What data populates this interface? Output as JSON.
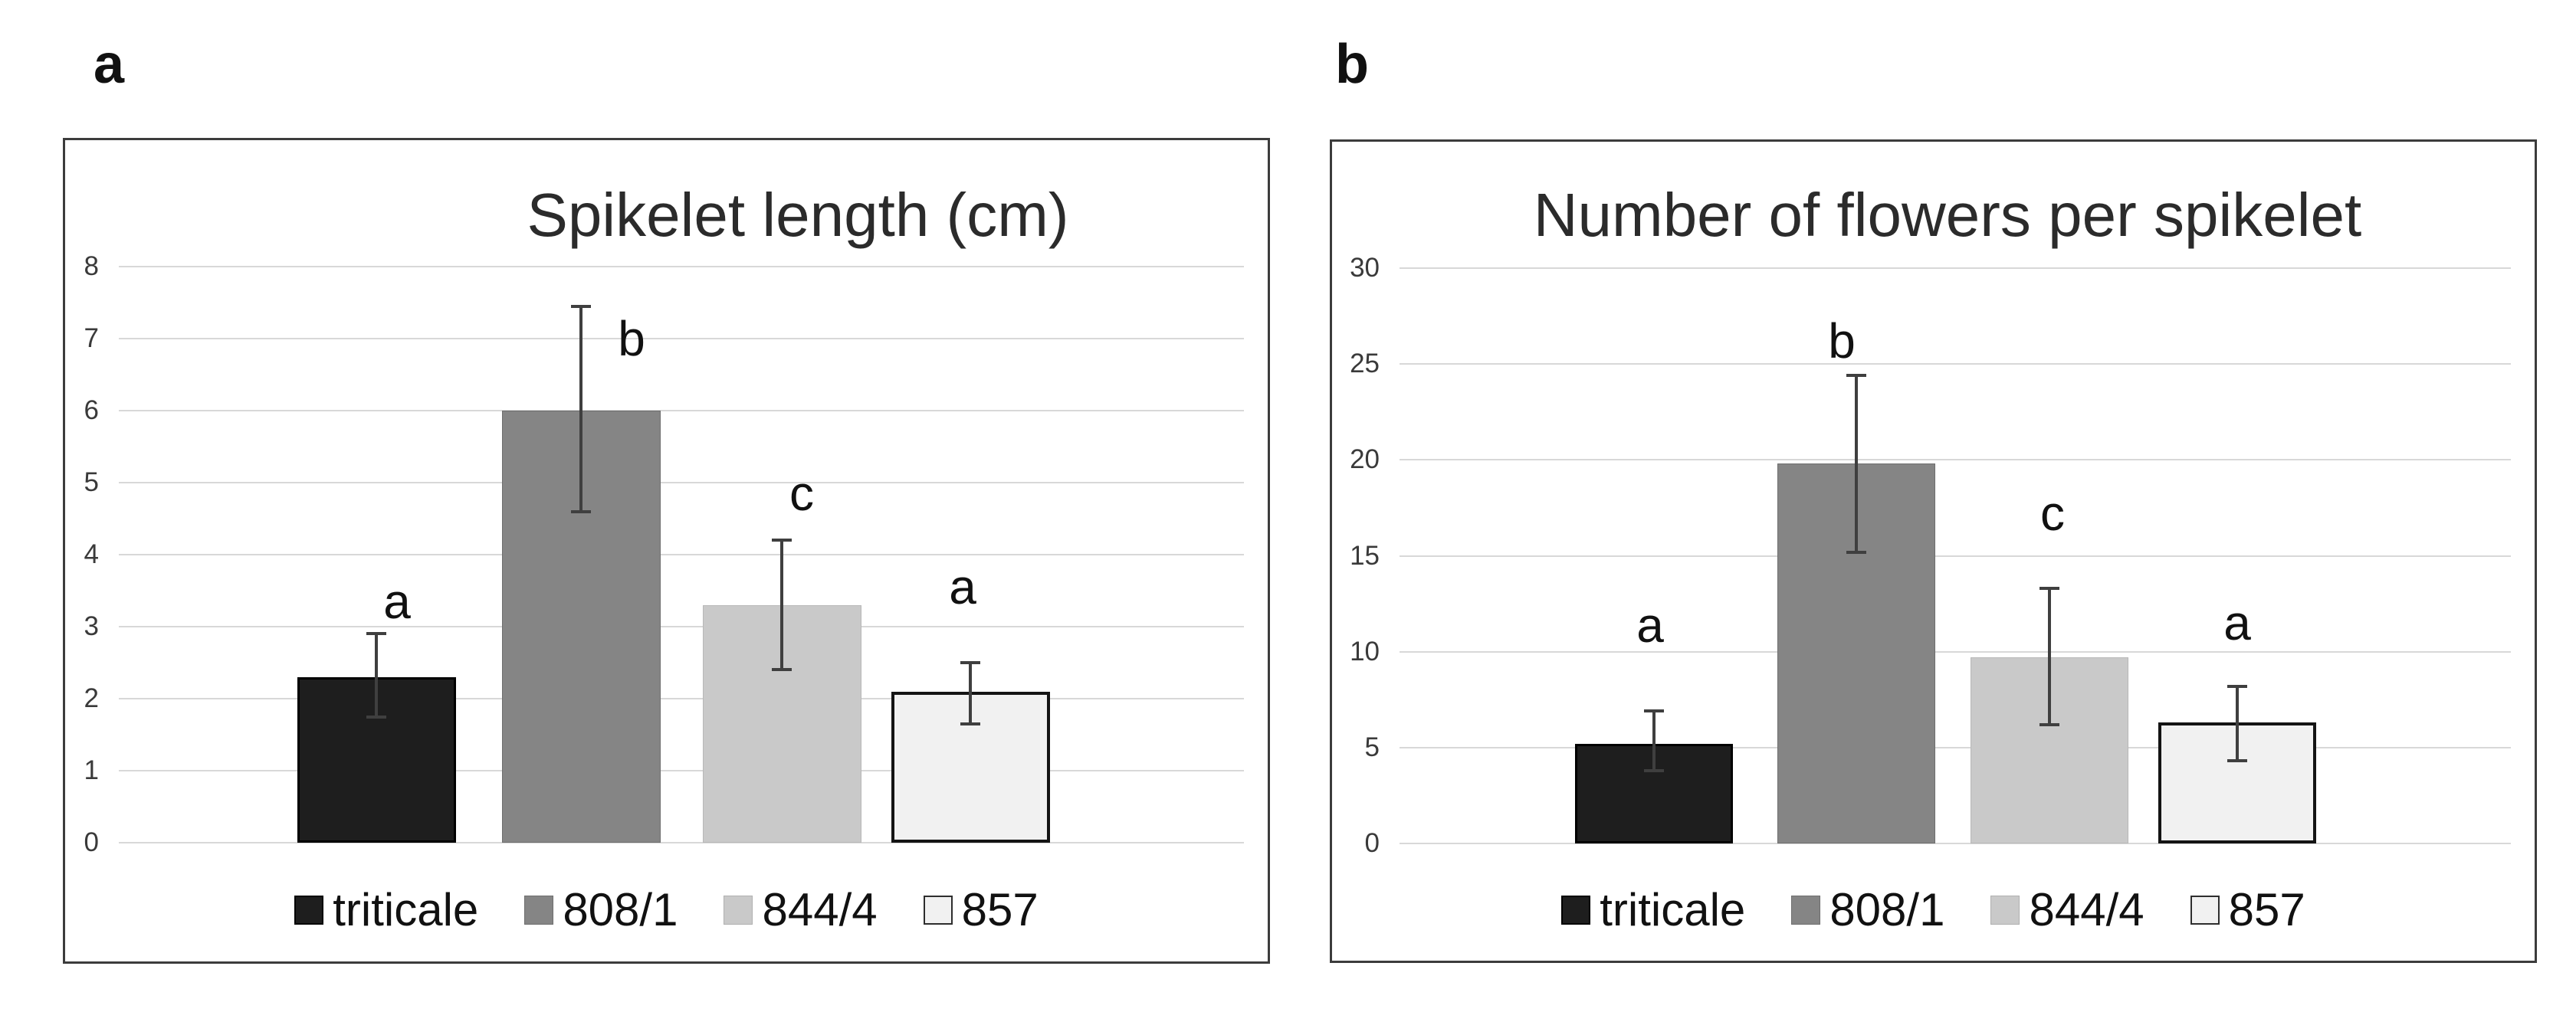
{
  "figure": {
    "panel_labels": [
      "a",
      "b"
    ]
  },
  "chart_data": [
    {
      "type": "bar",
      "panel_label": "a",
      "title": "Spikelet length (cm)",
      "categories": [
        "triticale",
        "808/1",
        "844/4",
        "857"
      ],
      "values": [
        2.3,
        6.0,
        3.3,
        2.1
      ],
      "error_low": [
        1.75,
        4.6,
        2.4,
        1.65
      ],
      "error_high": [
        2.9,
        7.45,
        4.2,
        2.5
      ],
      "sig_letters": [
        {
          "text": "a",
          "y": 3.35,
          "dx": 27
        },
        {
          "text": "b",
          "y": 7.0,
          "dx": 66
        },
        {
          "text": "c",
          "y": 4.85,
          "dx": 26
        },
        {
          "text": "a",
          "y": 3.55,
          "dx": -10
        }
      ],
      "y_ticks": [
        0,
        1,
        2,
        3,
        4,
        5,
        6,
        7,
        8
      ],
      "ylim": [
        0,
        8
      ],
      "xlabel": "",
      "ylabel": "",
      "grid": true,
      "legend_position": "bottom",
      "bar_colors": [
        "#1e1e1e",
        "#858585",
        "#c9c9c9",
        "#f1f1f1"
      ],
      "bar_border_colors": [
        "#000000",
        "#6e6e6e",
        "#b8b8b8",
        "#141414"
      ],
      "error_bar_color": "#3f3f3f"
    },
    {
      "type": "bar",
      "panel_label": "b",
      "title": "Number of flowers per spikelet",
      "categories": [
        "triticale",
        "808/1",
        "844/4",
        "857"
      ],
      "values": [
        5.2,
        19.8,
        9.7,
        6.3
      ],
      "error_low": [
        3.8,
        15.2,
        6.2,
        4.3
      ],
      "error_high": [
        6.9,
        24.4,
        13.3,
        8.2
      ],
      "sig_letters": [
        {
          "text": "a",
          "y": 11.4,
          "dx": -5
        },
        {
          "text": "b",
          "y": 26.2,
          "dx": -19
        },
        {
          "text": "c",
          "y": 17.2,
          "dx": 4
        },
        {
          "text": "a",
          "y": 11.5,
          "dx": 0
        }
      ],
      "y_ticks": [
        0,
        5,
        10,
        15,
        20,
        25,
        30
      ],
      "ylim": [
        0,
        30
      ],
      "xlabel": "",
      "ylabel": "",
      "grid": true,
      "legend_position": "bottom",
      "bar_colors": [
        "#1e1e1e",
        "#858585",
        "#c9c9c9",
        "#f1f1f1"
      ],
      "bar_border_colors": [
        "#000000",
        "#6e6e6e",
        "#b8b8b8",
        "#141414"
      ],
      "error_bar_color": "#3f3f3f"
    }
  ]
}
